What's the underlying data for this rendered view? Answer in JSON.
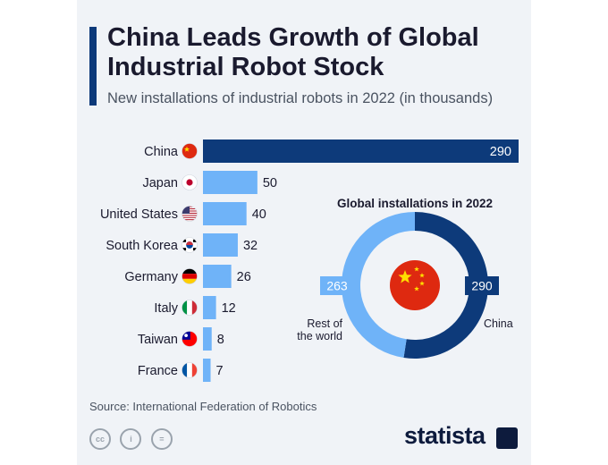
{
  "header": {
    "title": "China Leads Growth of Global Industrial Robot Stock",
    "subtitle": "New installations of industrial robots in 2022 (in thousands)"
  },
  "chart_data": [
    {
      "type": "bar",
      "orientation": "horizontal",
      "categories": [
        "China",
        "Japan",
        "United States",
        "South Korea",
        "Germany",
        "Italy",
        "Taiwan",
        "France"
      ],
      "values": [
        290,
        50,
        40,
        32,
        26,
        12,
        8,
        7
      ],
      "flags": [
        "china",
        "japan",
        "usa",
        "south-korea",
        "germany",
        "italy",
        "taiwan",
        "france"
      ],
      "xlim": [
        0,
        290
      ],
      "highlight_color": "#0d3a7a",
      "bar_color": "#6fb3f8"
    },
    {
      "type": "pie",
      "style": "donut",
      "title": "Global installations in 2022",
      "slices": [
        {
          "label": "China",
          "value": 290,
          "color": "#0d3a7a"
        },
        {
          "label": "Rest of the world",
          "value": 263,
          "color": "#6fb3f8"
        }
      ]
    }
  ],
  "footer": {
    "source": "Source: International Federation of Robotics",
    "license_icons": [
      "cc",
      "by",
      "nd"
    ],
    "brand": "statista"
  }
}
